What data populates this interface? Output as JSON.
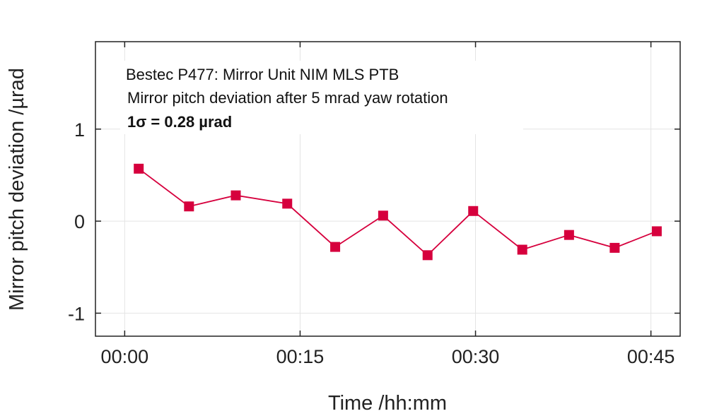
{
  "chart_data": {
    "type": "line",
    "xlabel": "Time /hh:mm",
    "ylabel": "Mirror pitch deviation /µrad",
    "xlim": [
      -2.5,
      47.5
    ],
    "ylim": [
      -1.25,
      1.95
    ],
    "x_ticks": [
      {
        "value": 0,
        "label": "00:00"
      },
      {
        "value": 15,
        "label": "00:15"
      },
      {
        "value": 30,
        "label": "00:30"
      },
      {
        "value": 45,
        "label": "00:45"
      }
    ],
    "y_ticks": [
      {
        "value": 1,
        "label": "1"
      },
      {
        "value": 0,
        "label": "0"
      },
      {
        "value": -1,
        "label": "-1"
      }
    ],
    "grid": true,
    "annotations": [
      "Bestec P477: Mirror Unit NIM MLS PTB",
      "Mirror pitch deviation after 5 mrad yaw rotation",
      "1σ = 0.28 µrad"
    ],
    "series": [
      {
        "color": "#d6003d",
        "marker": "square",
        "x": [
          1.2,
          5.5,
          9.5,
          13.9,
          18.0,
          22.1,
          25.9,
          29.8,
          34.0,
          38.0,
          41.9,
          45.5
        ],
        "y": [
          0.57,
          0.16,
          0.28,
          0.19,
          -0.28,
          0.06,
          -0.37,
          0.11,
          -0.31,
          -0.15,
          -0.29,
          -0.11
        ]
      }
    ]
  }
}
